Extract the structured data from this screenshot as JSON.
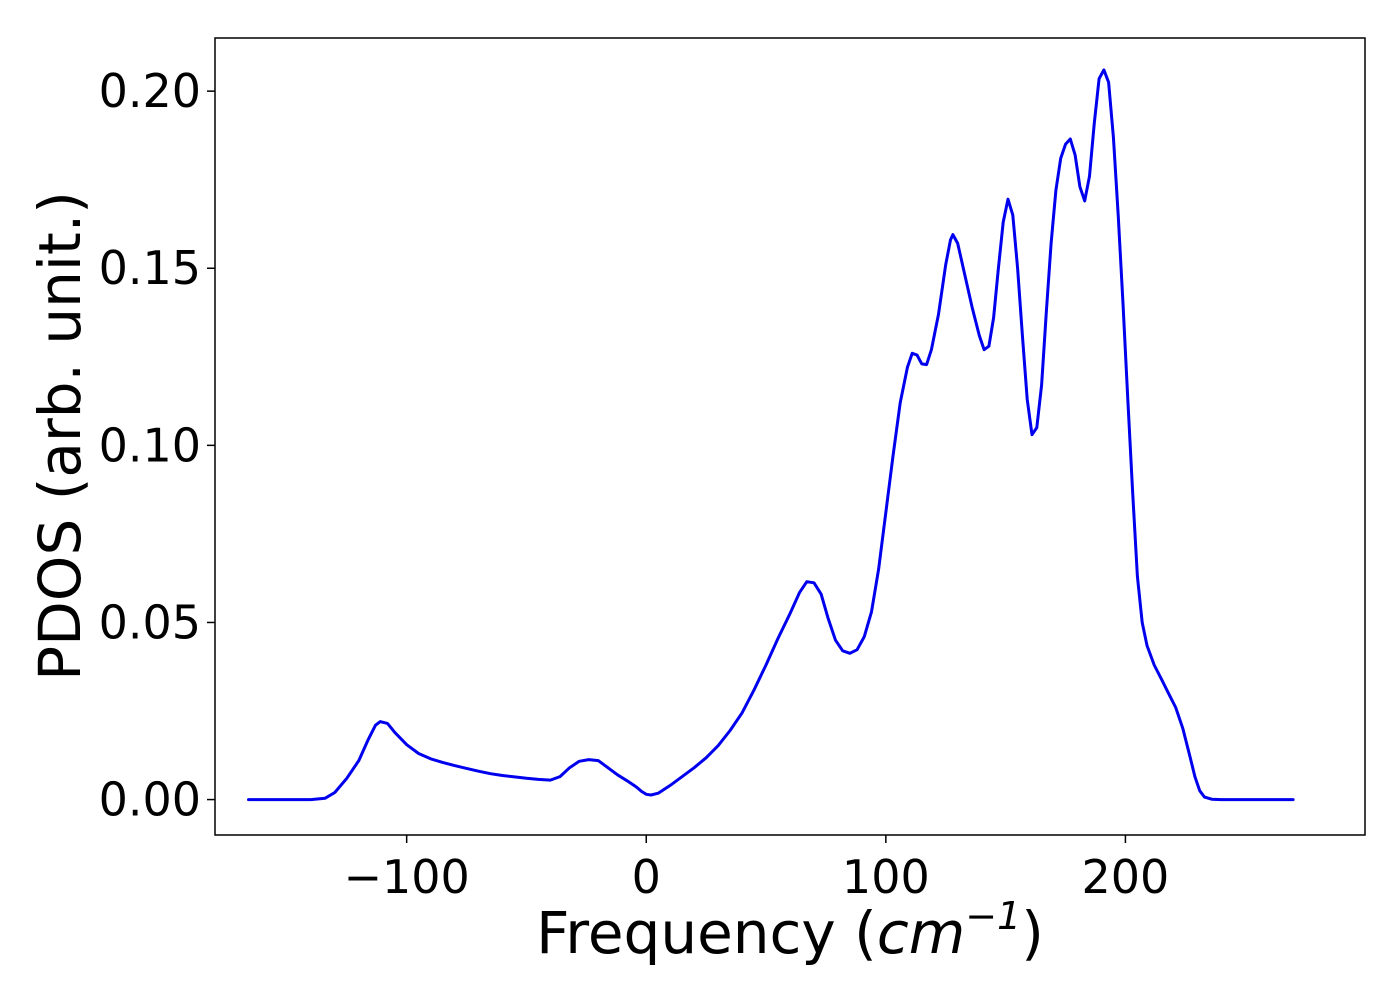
{
  "chart_data": {
    "type": "line",
    "xlabel_text": "Frequency (",
    "xlabel_math_base": "cm",
    "xlabel_math_sup": "−1",
    "xlabel_close": ")",
    "ylabel": "PDOS (arb. unit.)",
    "xlim": [
      -180,
      300
    ],
    "ylim": [
      -0.01,
      0.215
    ],
    "xticks": [
      -100,
      0,
      100,
      200
    ],
    "xtick_labels": [
      "−100",
      "0",
      "100",
      "200"
    ],
    "yticks": [
      0.0,
      0.05,
      0.1,
      0.15,
      0.2
    ],
    "ytick_labels": [
      "0.00",
      "0.05",
      "0.10",
      "0.15",
      "0.20"
    ],
    "grid": false,
    "series": [
      {
        "color": "#0000ee",
        "points": [
          [
            -166,
            0.0
          ],
          [
            -140,
            0.0
          ],
          [
            -134,
            0.0004
          ],
          [
            -130,
            0.002
          ],
          [
            -125,
            0.006
          ],
          [
            -120,
            0.011
          ],
          [
            -116,
            0.017
          ],
          [
            -113,
            0.021
          ],
          [
            -111,
            0.022
          ],
          [
            -108,
            0.0215
          ],
          [
            -105,
            0.019
          ],
          [
            -100,
            0.0155
          ],
          [
            -95,
            0.013
          ],
          [
            -90,
            0.0115
          ],
          [
            -85,
            0.0105
          ],
          [
            -80,
            0.0096
          ],
          [
            -75,
            0.0088
          ],
          [
            -70,
            0.008
          ],
          [
            -65,
            0.0073
          ],
          [
            -60,
            0.0068
          ],
          [
            -55,
            0.0064
          ],
          [
            -50,
            0.006
          ],
          [
            -45,
            0.0057
          ],
          [
            -40,
            0.0055
          ],
          [
            -36,
            0.0065
          ],
          [
            -32,
            0.009
          ],
          [
            -28,
            0.0108
          ],
          [
            -24,
            0.0113
          ],
          [
            -20,
            0.011
          ],
          [
            -16,
            0.009
          ],
          [
            -12,
            0.007
          ],
          [
            -8,
            0.0053
          ],
          [
            -4,
            0.0035
          ],
          [
            -2,
            0.0023
          ],
          [
            0,
            0.0015
          ],
          [
            2,
            0.0013
          ],
          [
            5,
            0.0018
          ],
          [
            10,
            0.004
          ],
          [
            15,
            0.0065
          ],
          [
            20,
            0.009
          ],
          [
            25,
            0.0118
          ],
          [
            30,
            0.0152
          ],
          [
            35,
            0.0195
          ],
          [
            40,
            0.0245
          ],
          [
            45,
            0.031
          ],
          [
            50,
            0.038
          ],
          [
            55,
            0.0455
          ],
          [
            60,
            0.0525
          ],
          [
            64,
            0.0585
          ],
          [
            67,
            0.0615
          ],
          [
            70,
            0.0612
          ],
          [
            73,
            0.058
          ],
          [
            76,
            0.051
          ],
          [
            79,
            0.045
          ],
          [
            82,
            0.042
          ],
          [
            85,
            0.0413
          ],
          [
            88,
            0.0423
          ],
          [
            91,
            0.046
          ],
          [
            94,
            0.053
          ],
          [
            97,
            0.065
          ],
          [
            100,
            0.081
          ],
          [
            103,
            0.097
          ],
          [
            106,
            0.112
          ],
          [
            109,
            0.122
          ],
          [
            111,
            0.126
          ],
          [
            113,
            0.1255
          ],
          [
            115,
            0.123
          ],
          [
            117,
            0.1228
          ],
          [
            119,
            0.127
          ],
          [
            122,
            0.137
          ],
          [
            125,
            0.151
          ],
          [
            127,
            0.158
          ],
          [
            128,
            0.1595
          ],
          [
            130,
            0.157
          ],
          [
            133,
            0.148
          ],
          [
            136,
            0.139
          ],
          [
            139,
            0.131
          ],
          [
            141,
            0.127
          ],
          [
            143,
            0.128
          ],
          [
            145,
            0.136
          ],
          [
            147,
            0.15
          ],
          [
            149,
            0.163
          ],
          [
            151,
            0.1695
          ],
          [
            153,
            0.165
          ],
          [
            155,
            0.15
          ],
          [
            157,
            0.131
          ],
          [
            159,
            0.113
          ],
          [
            161,
            0.103
          ],
          [
            163,
            0.105
          ],
          [
            165,
            0.117
          ],
          [
            167,
            0.138
          ],
          [
            169,
            0.157
          ],
          [
            171,
            0.172
          ],
          [
            173,
            0.181
          ],
          [
            175,
            0.185
          ],
          [
            177,
            0.1865
          ],
          [
            179,
            0.182
          ],
          [
            181,
            0.173
          ],
          [
            183,
            0.169
          ],
          [
            185,
            0.176
          ],
          [
            187,
            0.191
          ],
          [
            189,
            0.2035
          ],
          [
            191,
            0.206
          ],
          [
            193,
            0.2025
          ],
          [
            195,
            0.187
          ],
          [
            197,
            0.165
          ],
          [
            199,
            0.14
          ],
          [
            201,
            0.113
          ],
          [
            203,
            0.087
          ],
          [
            205,
            0.063
          ],
          [
            207,
            0.05
          ],
          [
            209,
            0.0435
          ],
          [
            212,
            0.038
          ],
          [
            215,
            0.034
          ],
          [
            218,
            0.03
          ],
          [
            221,
            0.026
          ],
          [
            224,
            0.02
          ],
          [
            227,
            0.012
          ],
          [
            229,
            0.0065
          ],
          [
            231,
            0.0025
          ],
          [
            233,
            0.0007
          ],
          [
            236,
            0.0001
          ],
          [
            240,
            0.0
          ],
          [
            270,
            0.0
          ]
        ]
      }
    ]
  }
}
